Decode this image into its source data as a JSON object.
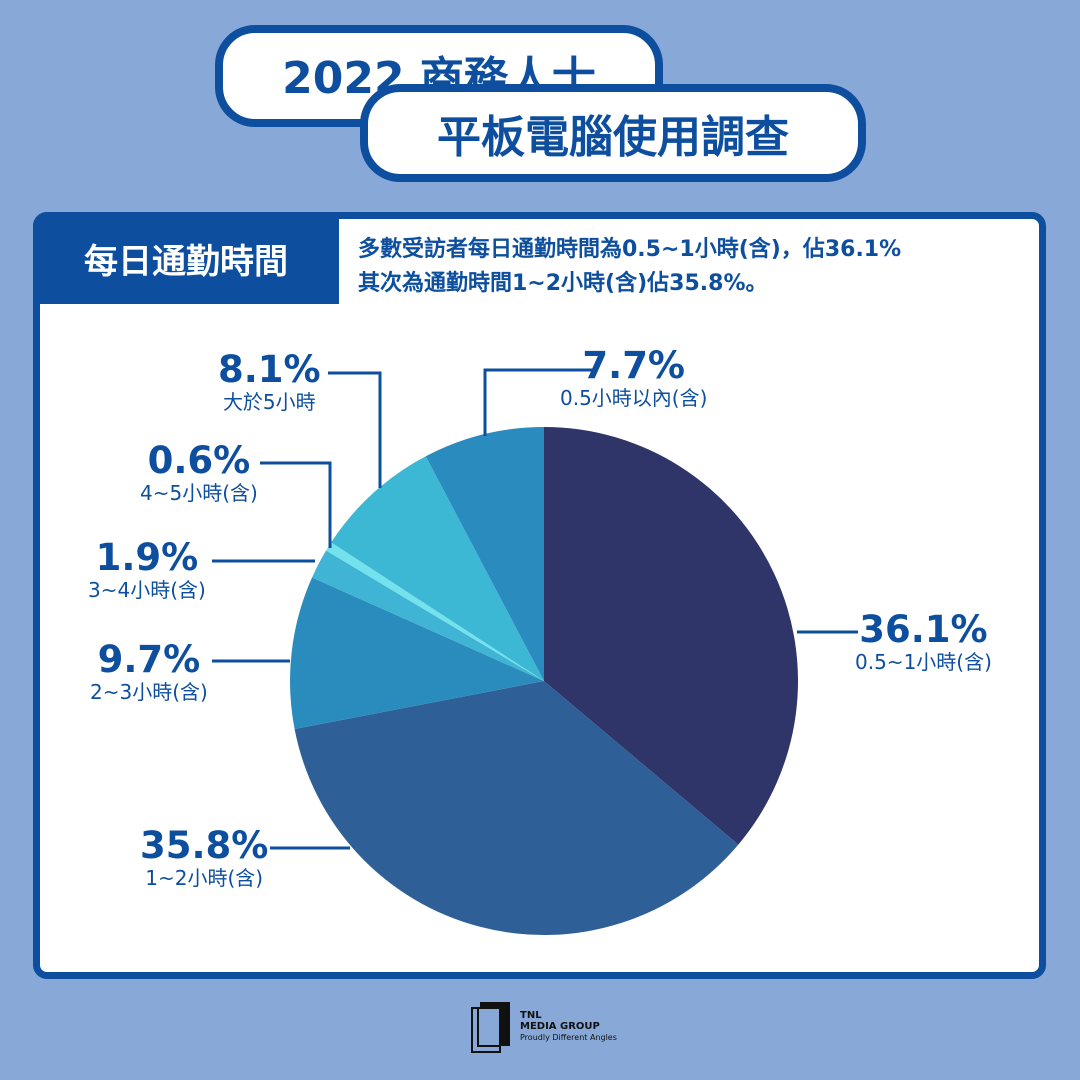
{
  "title": {
    "line1": "2022 商務人士",
    "line2": "平板電腦使用調查"
  },
  "section": {
    "tag": "每日通勤時間",
    "desc_line1": "多數受訪者每日通勤時間為0.5~1小時(含)，佔36.1%",
    "desc_line2": "其次為通勤時間1~2小時(含)佔35.8%。"
  },
  "chart_data": {
    "type": "pie",
    "title": "每日通勤時間",
    "start": "top, clockwise",
    "slices": [
      {
        "label": "0.5~1小時(含)",
        "value": 36.1,
        "value_label": "36.1%",
        "color": "#2f3469"
      },
      {
        "label": "1~2小時(含)",
        "value": 35.8,
        "value_label": "35.8%",
        "color": "#2e5f97"
      },
      {
        "label": "2~3小時(含)",
        "value": 9.7,
        "value_label": "9.7%",
        "color": "#2a8bbd"
      },
      {
        "label": "3~4小時(含)",
        "value": 1.9,
        "value_label": "1.9%",
        "color": "#3fb4d5"
      },
      {
        "label": "4~5小時(含)",
        "value": 0.6,
        "value_label": "0.6%",
        "color": "#74e2ec"
      },
      {
        "label": "大於5小時",
        "value": 8.1,
        "value_label": "8.1%",
        "color": "#3db8d4"
      },
      {
        "label": "0.5小時以內(含)",
        "value": 7.7,
        "value_label": "7.7%",
        "color": "#2a8cbe"
      }
    ]
  },
  "logo": {
    "line1": "TNL",
    "line2": "MEDIA GROUP",
    "tagline": "Proudly Different Angles"
  }
}
